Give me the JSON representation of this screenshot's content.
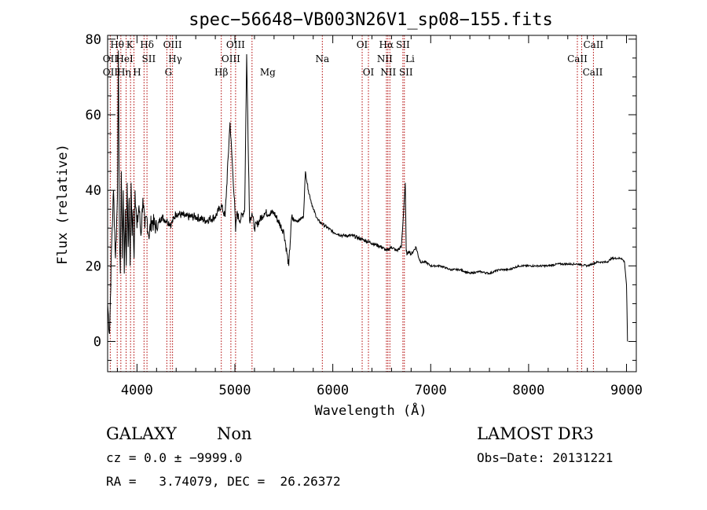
{
  "chart_data": {
    "type": "line",
    "title": "spec−56648−VB003N26V1_sp08−155.fits",
    "xlabel": "Wavelength (Å)",
    "ylabel": "Flux (relative)",
    "xlim": [
      3700,
      9100
    ],
    "ylim": [
      -8,
      81
    ],
    "xticks": [
      "4000",
      "5000",
      "6000",
      "7000",
      "8000",
      "9000"
    ],
    "yticks": [
      "0",
      "20",
      "40",
      "60",
      "80"
    ],
    "spectrum": {
      "x": [
        3700,
        3720,
        3740,
        3760,
        3780,
        3800,
        3810,
        3820,
        3830,
        3840,
        3850,
        3860,
        3870,
        3880,
        3890,
        3900,
        3910,
        3920,
        3930,
        3940,
        3950,
        3960,
        3970,
        3980,
        4000,
        4020,
        4040,
        4060,
        4080,
        4100,
        4120,
        4150,
        4200,
        4250,
        4300,
        4350,
        4400,
        4500,
        4600,
        4700,
        4800,
        4860,
        4900,
        4950,
        5000,
        5007,
        5020,
        5050,
        5100,
        5120,
        5150,
        5175,
        5200,
        5300,
        5400,
        5500,
        5550,
        5580,
        5600,
        5650,
        5700,
        5720,
        5750,
        5800,
        5850,
        5900,
        6000,
        6100,
        6200,
        6300,
        6400,
        6500,
        6550,
        6600,
        6650,
        6700,
        6720,
        6740,
        6750,
        6760,
        6780,
        6800,
        6850,
        6880,
        6900,
        6950,
        7000,
        7100,
        7200,
        7300,
        7400,
        7500,
        7600,
        7700,
        7800,
        7900,
        8000,
        8100,
        8200,
        8300,
        8400,
        8500,
        8600,
        8700,
        8750,
        8800,
        8850,
        8900,
        8950,
        8980,
        9000,
        9010
      ],
      "y": [
        10,
        2,
        25,
        40,
        22,
        38,
        77,
        30,
        18,
        45,
        22,
        40,
        18,
        35,
        20,
        42,
        25,
        38,
        20,
        42,
        28,
        35,
        22,
        40,
        30,
        36,
        28,
        38,
        30,
        33,
        28,
        32,
        30,
        33,
        32,
        31,
        34,
        33,
        33,
        32,
        33,
        36,
        33,
        58,
        35,
        29,
        34,
        32,
        35,
        76,
        32,
        34,
        30,
        34,
        34,
        29,
        20,
        33,
        32,
        32,
        33,
        45,
        40,
        35,
        32,
        31,
        29,
        28,
        28,
        27,
        26,
        25,
        24,
        25,
        24,
        25,
        33,
        42,
        24,
        23,
        24,
        23,
        25,
        22,
        21,
        21,
        20,
        20,
        19,
        19,
        18,
        18.5,
        18,
        19,
        19,
        20,
        20,
        20,
        20,
        20.5,
        20.5,
        20.5,
        20,
        21,
        21,
        21,
        22,
        22,
        22,
        21,
        15,
        0
      ]
    },
    "lines": [
      {
        "label": "OII",
        "x": 3727,
        "row": 2,
        "dx": 0
      },
      {
        "label": "OII",
        "x": 3727,
        "row": 3,
        "dx": 0
      },
      {
        "label": "Hθ",
        "x": 3798,
        "row": 1,
        "dx": 0
      },
      {
        "label": "Hη",
        "x": 3835,
        "row": 3,
        "dx": 4
      },
      {
        "label": "HeI",
        "x": 3889,
        "row": 2,
        "dx": -2
      },
      {
        "label": "K",
        "x": 3934,
        "row": 1,
        "dx": -1
      },
      {
        "label": "H",
        "x": 3969,
        "row": 3,
        "dx": 4
      },
      {
        "label": "Hδ",
        "x": 4102,
        "row": 1,
        "dx": 0
      },
      {
        "label": "SII",
        "x": 4072,
        "row": 2,
        "dx": 6
      },
      {
        "label": "OIII",
        "x": 4363,
        "row": 1,
        "dx": 0
      },
      {
        "label": "Hγ",
        "x": 4341,
        "row": 2,
        "dx": 6
      },
      {
        "label": "G",
        "x": 4305,
        "row": 3,
        "dx": 2
      },
      {
        "label": "Hβ",
        "x": 4861,
        "row": 3,
        "dx": 0
      },
      {
        "label": "OIII",
        "x": 5007,
        "row": 1,
        "dx": 0
      },
      {
        "label": "OIII",
        "x": 4959,
        "row": 2,
        "dx": 0
      },
      {
        "label": "Mg",
        "x": 5175,
        "row": 3,
        "dx": 20
      },
      {
        "label": "Na",
        "x": 5893,
        "row": 2,
        "dx": 0
      },
      {
        "label": "OI",
        "x": 6300,
        "row": 1,
        "dx": 0
      },
      {
        "label": "OI",
        "x": 6364,
        "row": 3,
        "dx": 0
      },
      {
        "label": "Hα",
        "x": 6563,
        "row": 1,
        "dx": -2
      },
      {
        "label": "SII",
        "x": 6716,
        "row": 1,
        "dx": 0
      },
      {
        "label": "NII",
        "x": 6548,
        "row": 2,
        "dx": -2
      },
      {
        "label": "Li",
        "x": 6708,
        "row": 2,
        "dx": 10
      },
      {
        "label": "NII",
        "x": 6583,
        "row": 3,
        "dx": -2
      },
      {
        "label": "SII",
        "x": 6731,
        "row": 3,
        "dx": 2
      },
      {
        "label": "CaII",
        "x": 8662,
        "row": 1,
        "dx": 0
      },
      {
        "label": "CaII",
        "x": 8498,
        "row": 2,
        "dx": 0
      },
      {
        "label": "CaII",
        "x": 8542,
        "row": 3,
        "dx": 14
      }
    ],
    "line_markers_x": [
      3727,
      3798,
      3835,
      3889,
      3934,
      3969,
      4072,
      4102,
      4305,
      4341,
      4363,
      4861,
      4959,
      5007,
      5175,
      5893,
      6300,
      6364,
      6548,
      6563,
      6583,
      6716,
      6731,
      8498,
      8542,
      8662
    ]
  },
  "info": {
    "object_class": "GALAXY",
    "subclass": "Non",
    "survey": "LAMOST DR3",
    "cz": "cz = 0.0 ± −9999.0",
    "obs_date": "Obs−Date: 20131221",
    "radec": "RA =   3.74079, DEC =  26.26372"
  }
}
